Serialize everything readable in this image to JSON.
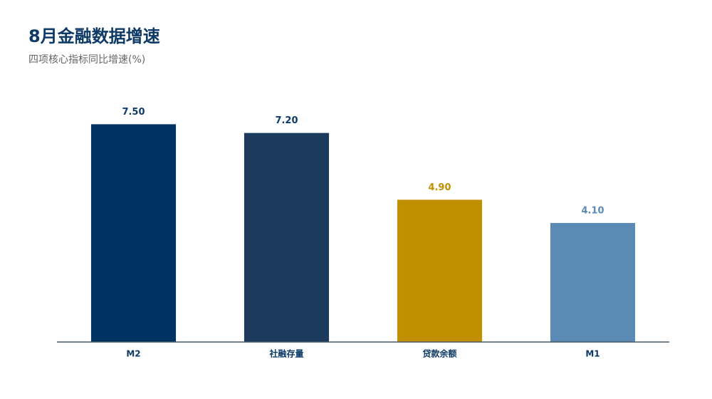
{
  "chart_data": {
    "type": "bar",
    "title": "8月金融数据增速",
    "subtitle": "四项核心指标同比增速(%)",
    "categories": [
      "M2",
      "社融存量",
      "贷款余额",
      "M1"
    ],
    "values": [
      7.5,
      7.2,
      4.9,
      4.1
    ],
    "value_labels": [
      "7.50",
      "7.20",
      "4.90",
      "4.10"
    ],
    "colors": [
      "#003362",
      "#1b3a5c",
      "#c09000",
      "#5b8ab5"
    ],
    "ylim": [
      0,
      8
    ]
  }
}
